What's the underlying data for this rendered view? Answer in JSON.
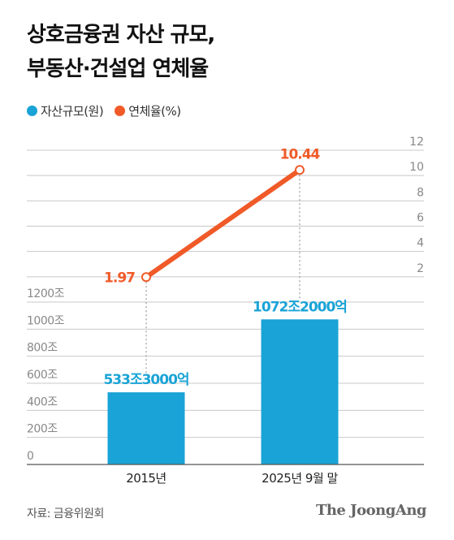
{
  "title_lines": [
    "상호금융권 자산 규모,",
    "부동산·건설업 연체율"
  ],
  "legend": [
    {
      "label": "자산규모(원)",
      "color": "#1aa3d6"
    },
    {
      "label": "연체율(%)",
      "color": "#f05a28"
    }
  ],
  "source": "자료: 금융위원회",
  "brand": "The JoongAng",
  "chart_data": {
    "type": "bar+line",
    "categories": [
      "2015년",
      "2025년 9월 말"
    ],
    "bar_series": {
      "name": "자산규모(원)",
      "unit": "조",
      "values": [
        533.3,
        1072.2
      ],
      "labels": [
        "533조3000억",
        "1072조2000억"
      ],
      "color": "#1aa3d6",
      "axis_ticks": [
        "0",
        "200조",
        "400조",
        "600조",
        "800조",
        "1000조",
        "1200조"
      ],
      "ylim": [
        0,
        1200
      ]
    },
    "line_series": {
      "name": "연체율(%)",
      "values": [
        1.97,
        10.44
      ],
      "labels": [
        "1.97",
        "10.44"
      ],
      "color": "#f05a28",
      "axis_ticks": [
        "2",
        "4",
        "6",
        "8",
        "10",
        "12"
      ],
      "ylim": [
        0,
        12
      ]
    },
    "grid": true
  }
}
